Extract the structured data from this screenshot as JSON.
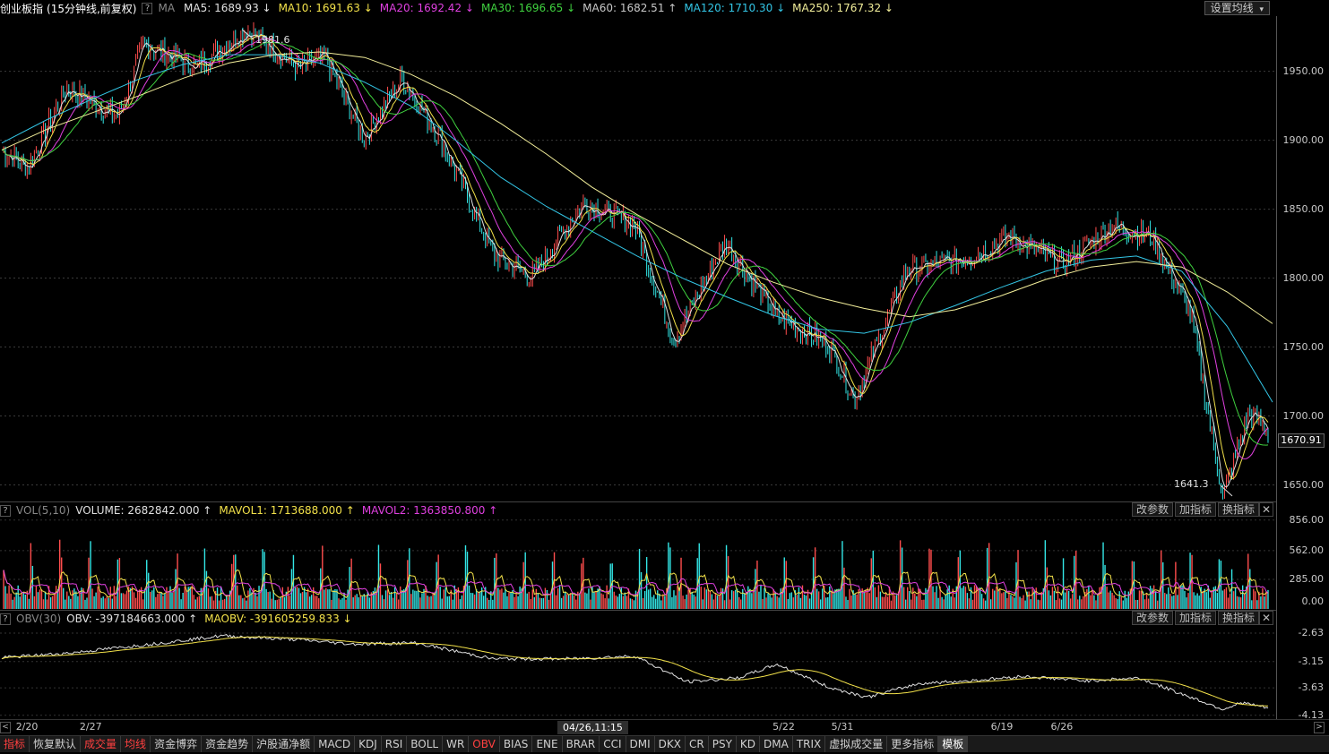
{
  "main": {
    "title": "创业板指",
    "period": "(15分钟线,前复权)",
    "help": "?",
    "ma_prefix": "MA",
    "ma_items": [
      {
        "label": "MA5: 1689.93",
        "arrow": "↓",
        "color": "#e0e0e0"
      },
      {
        "label": "MA10: 1691.63",
        "arrow": "↓",
        "color": "#f2e14a"
      },
      {
        "label": "MA20: 1692.42",
        "arrow": "↓",
        "color": "#e040e0"
      },
      {
        "label": "MA30: 1696.65",
        "arrow": "↓",
        "color": "#3fd13f"
      },
      {
        "label": "MA60: 1682.51",
        "arrow": "↑",
        "color": "#c8c8c8"
      },
      {
        "label": "MA120: 1710.30",
        "arrow": "↓",
        "color": "#33c6e6"
      },
      {
        "label": "MA250: 1767.32",
        "arrow": "↓",
        "color": "#f2ee9a"
      }
    ],
    "settings_button": "设置均线",
    "settings_caret": "▾",
    "high_label": "1981.6",
    "low_label": "1641.3",
    "y_ticks": [
      "1950.00",
      "1900.00",
      "1850.00",
      "1800.00",
      "1750.00",
      "1700.00",
      "1650.00"
    ],
    "y_tick_values": [
      1950,
      1900,
      1850,
      1800,
      1750,
      1700,
      1650
    ],
    "current_price": "1670.91",
    "price_range": [
      1638,
      1990
    ]
  },
  "volume": {
    "indicator": "VOL(5,10)",
    "items": [
      {
        "label": "VOLUME: 2682842.000",
        "arrow": "↑",
        "color": "#e0e0e0"
      },
      {
        "label": "MAVOL1: 1713688.000",
        "arrow": "↑",
        "color": "#f2e14a"
      },
      {
        "label": "MAVOL2: 1363850.800",
        "arrow": "↑",
        "color": "#e040e0"
      }
    ],
    "y_ticks": [
      "856.00",
      "562.00",
      "285.00",
      "0.00"
    ],
    "y_tick_values": [
      856,
      562,
      285,
      0
    ],
    "colors": {
      "up": "#ff4d4d",
      "down": "#33e6e6"
    }
  },
  "obv": {
    "indicator": "OBV(30)",
    "items": [
      {
        "label": "OBV: -397184663.000",
        "arrow": "↑",
        "color": "#e0e0e0"
      },
      {
        "label": "MAOBV: -391605259.833",
        "arrow": "↓",
        "color": "#f2e14a"
      }
    ],
    "y_ticks": [
      "-2.63",
      "-3.15",
      "-3.63",
      "-4.13"
    ],
    "y_tick_values": [
      -2.63,
      -3.15,
      -3.63,
      -4.13
    ]
  },
  "panel_buttons": [
    "改参数",
    "加指标",
    "换指标"
  ],
  "close_symbol": "✕",
  "x_axis": {
    "ticks": [
      {
        "label": "2/20",
        "pos": 0.004
      },
      {
        "label": "2/27",
        "pos": 0.054
      },
      {
        "label": "5/22",
        "pos": 0.597
      },
      {
        "label": "5/31",
        "pos": 0.643
      },
      {
        "label": "6/19",
        "pos": 0.768
      },
      {
        "label": "6/26",
        "pos": 0.815
      }
    ],
    "cursor_time": "04/26,11:15",
    "scroll_left": "<",
    "scroll_right": ">"
  },
  "tabs": [
    {
      "label": "指标",
      "color": "#ff4040",
      "selected": false
    },
    {
      "label": "恢复默认",
      "color": "#d0d0d0",
      "selected": false
    },
    {
      "label": "成交量",
      "color": "#ff4040",
      "selected": false
    },
    {
      "label": "均线",
      "color": "#ff4040",
      "selected": false
    },
    {
      "label": "资金博弈",
      "color": "#d0d0d0",
      "selected": false
    },
    {
      "label": "资金趋势",
      "color": "#d0d0d0",
      "selected": false
    },
    {
      "label": "沪股通净额",
      "color": "#d0d0d0",
      "selected": false
    },
    {
      "label": "MACD",
      "color": "#d0d0d0",
      "selected": false
    },
    {
      "label": "KDJ",
      "color": "#d0d0d0",
      "selected": false
    },
    {
      "label": "RSI",
      "color": "#d0d0d0",
      "selected": false
    },
    {
      "label": "BOLL",
      "color": "#d0d0d0",
      "selected": false
    },
    {
      "label": "WR",
      "color": "#d0d0d0",
      "selected": false
    },
    {
      "label": "OBV",
      "color": "#ff4040",
      "selected": false
    },
    {
      "label": "BIAS",
      "color": "#d0d0d0",
      "selected": false
    },
    {
      "label": "ENE",
      "color": "#d0d0d0",
      "selected": false
    },
    {
      "label": "BRAR",
      "color": "#d0d0d0",
      "selected": false
    },
    {
      "label": "CCI",
      "color": "#d0d0d0",
      "selected": false
    },
    {
      "label": "DMI",
      "color": "#d0d0d0",
      "selected": false
    },
    {
      "label": "DKX",
      "color": "#d0d0d0",
      "selected": false
    },
    {
      "label": "CR",
      "color": "#d0d0d0",
      "selected": false
    },
    {
      "label": "PSY",
      "color": "#d0d0d0",
      "selected": false
    },
    {
      "label": "KD",
      "color": "#d0d0d0",
      "selected": false
    },
    {
      "label": "DMA",
      "color": "#d0d0d0",
      "selected": false
    },
    {
      "label": "TRIX",
      "color": "#d0d0d0",
      "selected": false
    },
    {
      "label": "虚拟成交量",
      "color": "#d0d0d0",
      "selected": false
    },
    {
      "label": "更多指标",
      "color": "#d0d0d0",
      "selected": false
    },
    {
      "label": "模板",
      "color": "#ffffff",
      "selected": true
    }
  ],
  "chart_data": {
    "type": "line",
    "title": "",
    "xlabel": "",
    "ylabel": "",
    "x_range_labels": [
      "2/20",
      "6/26"
    ],
    "ylim": [
      1638,
      1990
    ],
    "series": [
      {
        "name": "MA250",
        "values": [
          1893,
          1908,
          1920,
          1932,
          1945,
          1956,
          1962,
          1964,
          1960,
          1948,
          1932,
          1912,
          1890,
          1866,
          1846,
          1828,
          1810,
          1797,
          1786,
          1778,
          1772,
          1777,
          1787,
          1799,
          1808,
          1812,
          1808,
          1790,
          1767
        ]
      },
      {
        "name": "MA120",
        "values": [
          1898,
          1915,
          1930,
          1944,
          1955,
          1962,
          1962,
          1956,
          1942,
          1925,
          1900,
          1873,
          1852,
          1834,
          1816,
          1800,
          1786,
          1773,
          1763,
          1760,
          1768,
          1780,
          1793,
          1805,
          1813,
          1816,
          1805,
          1765,
          1710
        ]
      }
    ],
    "price_path_anchors": [
      [
        0,
        1893
      ],
      [
        0.02,
        1880
      ],
      [
        0.05,
        1938
      ],
      [
        0.09,
        1917
      ],
      [
        0.11,
        1970
      ],
      [
        0.15,
        1953
      ],
      [
        0.19,
        1980
      ],
      [
        0.23,
        1952
      ],
      [
        0.25,
        1960
      ],
      [
        0.28,
        1902
      ],
      [
        0.31,
        1945
      ],
      [
        0.34,
        1900
      ],
      [
        0.38,
        1818
      ],
      [
        0.41,
        1800
      ],
      [
        0.45,
        1855
      ],
      [
        0.49,
        1838
      ],
      [
        0.52,
        1755
      ],
      [
        0.56,
        1826
      ],
      [
        0.6,
        1772
      ],
      [
        0.64,
        1752
      ],
      [
        0.66,
        1712
      ],
      [
        0.7,
        1806
      ],
      [
        0.75,
        1815
      ],
      [
        0.78,
        1830
      ],
      [
        0.82,
        1810
      ],
      [
        0.86,
        1838
      ],
      [
        0.89,
        1830
      ],
      [
        0.92,
        1775
      ],
      [
        0.945,
        1641
      ],
      [
        0.965,
        1703
      ],
      [
        0.98,
        1690
      ]
    ],
    "obv_path_anchors": [
      [
        0,
        -3.08
      ],
      [
        0.05,
        -3.0
      ],
      [
        0.12,
        -2.82
      ],
      [
        0.17,
        -2.68
      ],
      [
        0.23,
        -2.75
      ],
      [
        0.27,
        -2.83
      ],
      [
        0.32,
        -2.81
      ],
      [
        0.38,
        -3.1
      ],
      [
        0.44,
        -3.1
      ],
      [
        0.49,
        -3.05
      ],
      [
        0.53,
        -3.52
      ],
      [
        0.57,
        -3.45
      ],
      [
        0.6,
        -3.2
      ],
      [
        0.64,
        -3.62
      ],
      [
        0.67,
        -3.8
      ],
      [
        0.71,
        -3.55
      ],
      [
        0.75,
        -3.5
      ],
      [
        0.79,
        -3.42
      ],
      [
        0.84,
        -3.5
      ],
      [
        0.88,
        -3.45
      ],
      [
        0.92,
        -3.8
      ],
      [
        0.945,
        -4.02
      ],
      [
        0.96,
        -3.9
      ],
      [
        0.98,
        -4.0
      ]
    ]
  }
}
